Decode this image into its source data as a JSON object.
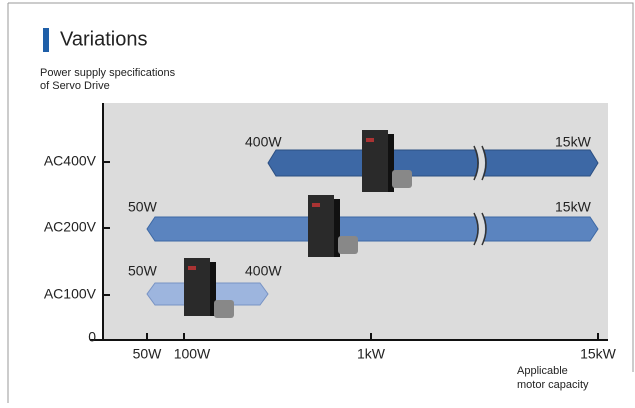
{
  "header": {
    "title": "Variations",
    "subtitle": [
      "Power supply specifications",
      "of Servo Drive"
    ]
  },
  "y_axis": {
    "labels": [
      "AC400V",
      "AC200V",
      "AC100V",
      "0"
    ]
  },
  "x_axis": {
    "labels": [
      "50W",
      "100W",
      "1kW",
      "15kW"
    ],
    "caption": [
      "Applicable",
      "motor capacity"
    ]
  },
  "ranges": [
    {
      "start": "400W",
      "end": "15kW"
    },
    {
      "start": "50W",
      "end": "15kW"
    },
    {
      "start": "50W",
      "end": "400W"
    }
  ]
}
